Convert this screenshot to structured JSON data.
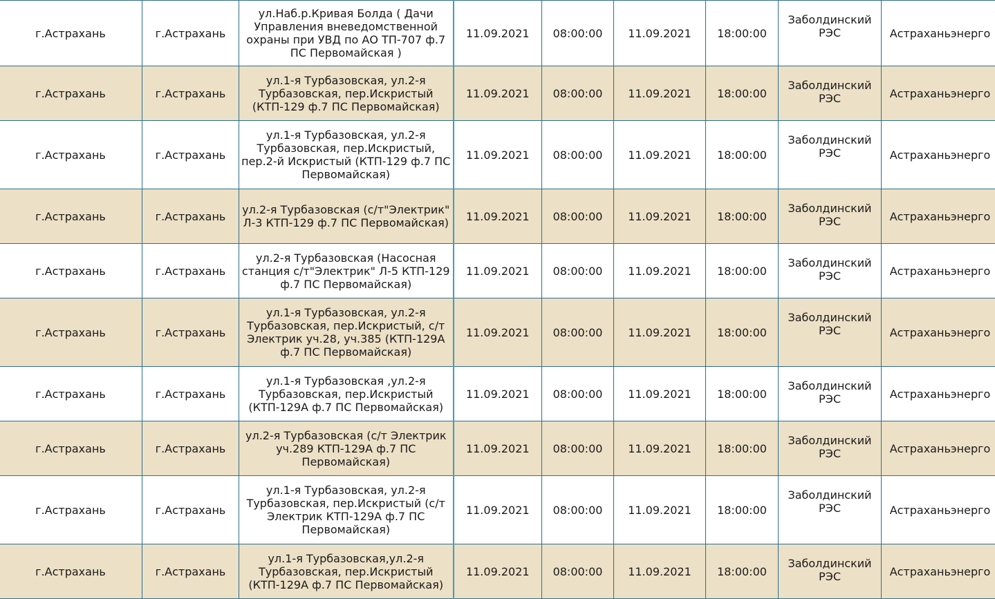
{
  "table": {
    "rows": [
      {
        "city": "г.Астрахань",
        "locality": "г.Астрахань",
        "address": "ул.Наб.р.Кривая Болда ( Дачи Управления вневедомственной охраны при УВД по АО ТП-707 ф.7 ПС Первомайская )",
        "start_date": "11.09.2021",
        "start_time": "08:00:00",
        "end_date": "11.09.2021",
        "end_time": "18:00:00",
        "res": "Заболдинский РЭС",
        "company": "Астраханьэнерго"
      },
      {
        "city": "г.Астрахань",
        "locality": "г.Астрахань",
        "address": "ул.1-я Турбазовская, ул.2-я Турбазовская, пер.Искристый (КТП-129 ф.7 ПС Первомайская)",
        "start_date": "11.09.2021",
        "start_time": "08:00:00",
        "end_date": "11.09.2021",
        "end_time": "18:00:00",
        "res": "Заболдинский РЭС",
        "company": "Астраханьэнерго"
      },
      {
        "city": "г.Астрахань",
        "locality": "г.Астрахань",
        "address": "ул.1-я Турбазовская, ул.2-я Турбазовская, пер.Искристый, пер.2-й Искристый (КТП-129 ф.7 ПС Первомайская)",
        "start_date": "11.09.2021",
        "start_time": "08:00:00",
        "end_date": "11.09.2021",
        "end_time": "18:00:00",
        "res": "Заболдинский РЭС",
        "company": "Астраханьэнерго"
      },
      {
        "city": "г.Астрахань",
        "locality": "г.Астрахань",
        "address": "ул.2-я Турбазовская (с/т\"Электрик\" Л-3 КТП-129 ф.7 ПС Первомайская)",
        "start_date": "11.09.2021",
        "start_time": "08:00:00",
        "end_date": "11.09.2021",
        "end_time": "18:00:00",
        "res": "Заболдинский РЭС",
        "company": "Астраханьэнерго"
      },
      {
        "city": "г.Астрахань",
        "locality": "г.Астрахань",
        "address": "ул.2-я Турбазовская (Насосная станция с/т\"Электрик\" Л-5 КТП-129 ф.7 ПС Первомайская)",
        "start_date": "11.09.2021",
        "start_time": "08:00:00",
        "end_date": "11.09.2021",
        "end_time": "18:00:00",
        "res": "Заболдинский РЭС",
        "company": "Астраханьэнерго"
      },
      {
        "city": "г.Астрахань",
        "locality": "г.Астрахань",
        "address": "ул.1-я Турбазовская, ул.2-я Турбазовская, пер.Искристый, с/т Электрик уч.28, уч.385 (КТП-129А ф.7 ПС Первомайская)",
        "start_date": "11.09.2021",
        "start_time": "08:00:00",
        "end_date": "11.09.2021",
        "end_time": "18:00:00",
        "res": "Заболдинский РЭС",
        "company": "Астраханьэнерго"
      },
      {
        "city": "г.Астрахань",
        "locality": "г.Астрахань",
        "address": "ул.1-я Турбазовская ,ул.2-я Турбазовская, пер.Искристый (КТП-129А ф.7 ПС Первомайская)",
        "start_date": "11.09.2021",
        "start_time": "08:00:00",
        "end_date": "11.09.2021",
        "end_time": "18:00:00",
        "res": "Заболдинский РЭС",
        "company": "Астраханьэнерго"
      },
      {
        "city": "г.Астрахань",
        "locality": "г.Астрахань",
        "address": "ул.2-я Турбазовская (с/т Электрик уч.289 КТП-129А ф.7 ПС Первомайская)",
        "start_date": "11.09.2021",
        "start_time": "08:00:00",
        "end_date": "11.09.2021",
        "end_time": "18:00:00",
        "res": "Заболдинский РЭС",
        "company": "Астраханьэнерго"
      },
      {
        "city": "г.Астрахань",
        "locality": "г.Астрахань",
        "address": "ул.1-я Турбазовская, ул.2-я Турбазовская, пер.Искристый (с/т Электрик КТП-129А ф.7 ПС Первомайская)",
        "start_date": "11.09.2021",
        "start_time": "08:00:00",
        "end_date": "11.09.2021",
        "end_time": "18:00:00",
        "res": "Заболдинский РЭС",
        "company": "Астраханьэнерго"
      },
      {
        "city": "г.Астрахань",
        "locality": "г.Астрахань",
        "address": "ул.1-я Турбазовская,ул.2-я Турбазовская, пер.Искристый (КТП-129А ф.7 ПС Первомайская)",
        "start_date": "11.09.2021",
        "start_time": "08:00:00",
        "end_date": "11.09.2021",
        "end_time": "18:00:00",
        "res": "Заболдинский РЭС",
        "company": "Астраханьэнерго"
      }
    ]
  }
}
